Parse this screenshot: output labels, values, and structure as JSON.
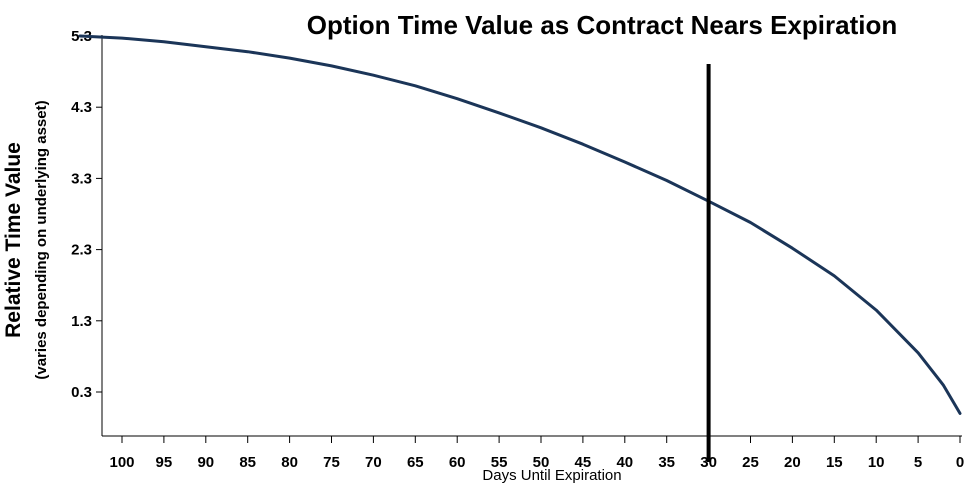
{
  "chart_data": {
    "type": "line",
    "title": "Option Time Value as Contract Nears Expiration",
    "xlabel": "Days Until Expiration",
    "ylabel": "Relative Time Value",
    "ylabel_sub": "(varies depending on underlying asset)",
    "x_reversed": true,
    "xlim": [
      0,
      105
    ],
    "ylim": [
      0,
      5.3
    ],
    "x_ticks": [
      100,
      95,
      90,
      85,
      80,
      75,
      70,
      65,
      60,
      55,
      50,
      45,
      40,
      35,
      30,
      25,
      20,
      15,
      10,
      5,
      0
    ],
    "y_ticks": [
      0.3,
      1.3,
      2.3,
      3.3,
      4.3,
      5.3
    ],
    "grid": false,
    "series": [
      {
        "color": "#1b3558",
        "x": [
          105,
          100,
          95,
          90,
          85,
          80,
          75,
          70,
          65,
          60,
          55,
          50,
          45,
          40,
          35,
          30,
          25,
          20,
          15,
          10,
          5,
          2,
          0
        ],
        "y": [
          5.3,
          5.27,
          5.22,
          5.15,
          5.08,
          4.99,
          4.88,
          4.75,
          4.6,
          4.42,
          4.22,
          4.01,
          3.78,
          3.53,
          3.27,
          2.98,
          2.68,
          2.32,
          1.93,
          1.45,
          0.85,
          0.4,
          0.0
        ]
      }
    ],
    "annotations": [
      {
        "type": "vertical_line",
        "x": 30,
        "color": "#000000"
      }
    ]
  }
}
